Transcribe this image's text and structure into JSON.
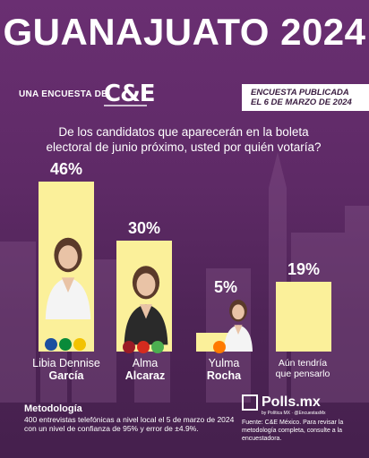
{
  "header": {
    "title": "GUANAJUATO 2024",
    "survey_by": "UNA ENCUESTA DE:",
    "pollster_logo": "C&E",
    "published": "ENCUESTA PUBLICADA\nEL 6 DE MARZO DE 2024"
  },
  "question": "De los candidatos que aparecerán en la boleta electoral de junio próximo, usted por quién votaría?",
  "chart_data": {
    "type": "bar",
    "categories": [
      "Libia Dennise García",
      "Alma Alcaraz",
      "Yulma Rocha",
      "Aún tendría que pensarlo"
    ],
    "values": [
      46,
      30,
      5,
      19
    ],
    "value_labels": [
      "46%",
      "30%",
      "5%",
      "19%"
    ],
    "ylim": [
      0,
      50
    ]
  },
  "candidates": [
    {
      "first": "Libia Dennise",
      "last": "García",
      "parties": [
        "PAN",
        "PRI",
        "PRD"
      ]
    },
    {
      "first": "Alma",
      "last": "Alcaraz",
      "parties": [
        "MORENA",
        "PT",
        "PVEM"
      ]
    },
    {
      "first": "Yulma",
      "last": "Rocha",
      "parties": [
        "MC"
      ]
    },
    {
      "first": "Aún tendría",
      "last": "que pensarlo"
    }
  ],
  "footer": {
    "method_title": "Metodología",
    "method_text": "400 entrevistas telefónicas a nivel local el 5 de marzo de 2024 con un nivel de confianza de 95% y error de ±4.9%.",
    "brand": "Polls.mx",
    "brand_sub": "by Política MX · @EncuestasMx",
    "source": "Fuente: C&E México. Para revisar la metodología completa, consulte a la encuestadora."
  },
  "colors": {
    "bar": "#fbf09a",
    "background": "#5e2a66",
    "text": "#ffffff"
  }
}
